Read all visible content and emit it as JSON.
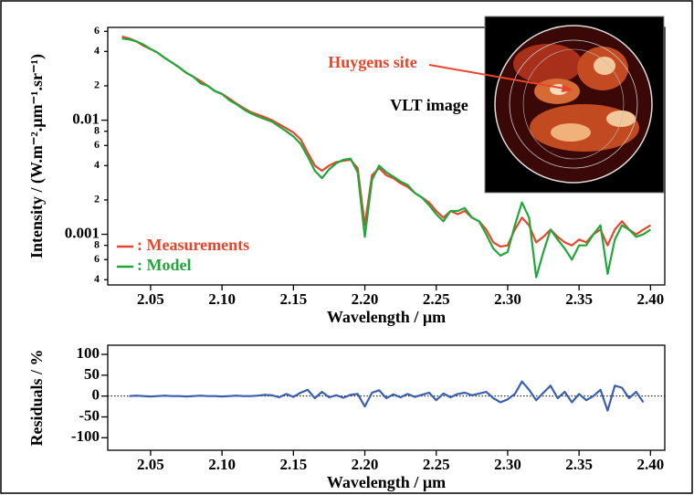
{
  "chart_data": [
    {
      "type": "line",
      "log_y": true,
      "legend": "lower left",
      "xlabel": "Wavelength / µm",
      "ylabel": "Intensity / (W.m⁻².µm⁻¹.sr⁻¹)",
      "annotations": [
        "Huygens site",
        "VLT image"
      ],
      "xlim": [
        2.02,
        2.41
      ],
      "xticks": [
        2.05,
        2.1,
        2.15,
        2.2,
        2.25,
        2.3,
        2.35,
        2.4
      ],
      "xtick_labels": [
        "2.05",
        "2.10",
        "2.15",
        "2.20",
        "2.25",
        "2.30",
        "2.35",
        "2.40"
      ],
      "ylim": [
        0.00036,
        0.065
      ],
      "yticks": [
        {
          "value": 0.06,
          "label": "6"
        },
        {
          "value": 0.04,
          "label": "4"
        },
        {
          "value": 0.02,
          "label": "2"
        },
        0.01,
        {
          "value": 0.008,
          "label": "8"
        },
        {
          "value": 0.006,
          "label": "6"
        },
        {
          "value": 0.004,
          "label": "4"
        },
        {
          "value": 0.002,
          "label": "2"
        },
        0.001,
        {
          "value": 0.0008,
          "label": "8"
        },
        {
          "value": 0.0006,
          "label": "6"
        },
        {
          "value": 0.0004,
          "label": "4"
        }
      ],
      "x": [
        2.03,
        2.035,
        2.04,
        2.045,
        2.05,
        2.055,
        2.06,
        2.065,
        2.07,
        2.075,
        2.08,
        2.085,
        2.09,
        2.095,
        2.1,
        2.105,
        2.11,
        2.115,
        2.12,
        2.125,
        2.13,
        2.135,
        2.14,
        2.145,
        2.15,
        2.155,
        2.16,
        2.165,
        2.17,
        2.175,
        2.18,
        2.185,
        2.19,
        2.195,
        2.2,
        2.205,
        2.21,
        2.215,
        2.22,
        2.225,
        2.23,
        2.235,
        2.24,
        2.245,
        2.25,
        2.255,
        2.26,
        2.265,
        2.27,
        2.275,
        2.28,
        2.285,
        2.29,
        2.295,
        2.3,
        2.305,
        2.31,
        2.315,
        2.32,
        2.325,
        2.33,
        2.335,
        2.34,
        2.345,
        2.35,
        2.355,
        2.36,
        2.365,
        2.37,
        2.375,
        2.38,
        2.385,
        2.39,
        2.395,
        2.4
      ],
      "series": [
        {
          "name": ": Measurements",
          "color": "#e8452c",
          "values": [
            0.054,
            0.052,
            0.049,
            0.045,
            0.042,
            0.039,
            0.035,
            0.032,
            0.029,
            0.026,
            0.024,
            0.022,
            0.02,
            0.018,
            0.017,
            0.0155,
            0.014,
            0.0128,
            0.0118,
            0.0112,
            0.0106,
            0.01,
            0.0092,
            0.0085,
            0.0078,
            0.0068,
            0.0052,
            0.004,
            0.0036,
            0.004,
            0.0043,
            0.0044,
            0.0045,
            0.0038,
            0.0012,
            0.0033,
            0.0038,
            0.0033,
            0.0031,
            0.0028,
            0.0026,
            0.0023,
            0.0021,
            0.0019,
            0.0016,
            0.0014,
            0.0016,
            0.0015,
            0.0016,
            0.0014,
            0.0013,
            0.0011,
            0.00085,
            0.00078,
            0.0008,
            0.0011,
            0.0014,
            0.0012,
            0.00085,
            0.00095,
            0.0011,
            0.00095,
            0.00085,
            0.0008,
            0.0009,
            0.00085,
            0.001,
            0.0011,
            0.0008,
            0.0011,
            0.0013,
            0.0011,
            0.001,
            0.0011,
            0.0012
          ]
        },
        {
          "name": ": Model",
          "color": "#1fa73a",
          "values": [
            0.052,
            0.051,
            0.049,
            0.046,
            0.042,
            0.039,
            0.035,
            0.032,
            0.029,
            0.026,
            0.024,
            0.021,
            0.02,
            0.018,
            0.017,
            0.015,
            0.0138,
            0.0125,
            0.0115,
            0.0108,
            0.0102,
            0.0097,
            0.0088,
            0.008,
            0.0072,
            0.0062,
            0.0048,
            0.0036,
            0.0031,
            0.0037,
            0.0042,
            0.0045,
            0.0046,
            0.0035,
            0.00095,
            0.003,
            0.004,
            0.0035,
            0.0032,
            0.0029,
            0.0027,
            0.0023,
            0.0021,
            0.0018,
            0.0015,
            0.0013,
            0.0016,
            0.0016,
            0.0017,
            0.0014,
            0.0013,
            0.001,
            0.00075,
            0.00065,
            0.0007,
            0.0012,
            0.0019,
            0.0014,
            0.00042,
            0.0007,
            0.0011,
            0.0009,
            0.00075,
            0.0006,
            0.0008,
            0.0008,
            0.001,
            0.0012,
            0.00045,
            0.0009,
            0.0012,
            0.0011,
            0.00095,
            0.001,
            0.0011
          ]
        }
      ]
    },
    {
      "type": "line",
      "zero_line": true,
      "xlabel": "Wavelength / µm",
      "ylabel": "Residuals / %",
      "xlim": [
        2.02,
        2.41
      ],
      "xticks": [
        2.05,
        2.1,
        2.15,
        2.2,
        2.25,
        2.3,
        2.35,
        2.4
      ],
      "xtick_labels": [
        "2.05",
        "2.10",
        "2.15",
        "2.20",
        "2.25",
        "2.30",
        "2.35",
        "2.40"
      ],
      "ylim": [
        -130,
        122
      ],
      "yticks": [
        100,
        50,
        0,
        -50,
        -100
      ],
      "x": [
        2.035,
        2.04,
        2.045,
        2.05,
        2.055,
        2.06,
        2.065,
        2.07,
        2.075,
        2.08,
        2.085,
        2.09,
        2.095,
        2.1,
        2.105,
        2.11,
        2.115,
        2.12,
        2.125,
        2.13,
        2.135,
        2.14,
        2.145,
        2.15,
        2.155,
        2.16,
        2.165,
        2.17,
        2.175,
        2.18,
        2.185,
        2.19,
        2.195,
        2.2,
        2.205,
        2.21,
        2.215,
        2.22,
        2.225,
        2.23,
        2.235,
        2.24,
        2.245,
        2.25,
        2.255,
        2.26,
        2.265,
        2.27,
        2.275,
        2.28,
        2.285,
        2.29,
        2.295,
        2.3,
        2.305,
        2.31,
        2.315,
        2.32,
        2.325,
        2.33,
        2.335,
        2.34,
        2.345,
        2.35,
        2.355,
        2.36,
        2.365,
        2.37,
        2.375,
        2.38,
        2.385,
        2.39,
        2.395
      ],
      "series": [
        {
          "color": "#3a5fb0",
          "values": [
            0,
            1,
            0,
            -1,
            0,
            1,
            0,
            0,
            -1,
            0,
            1,
            0,
            0,
            -1,
            0,
            1,
            0,
            0,
            1,
            3,
            2,
            -3,
            5,
            -2,
            8,
            15,
            -5,
            10,
            -3,
            2,
            -4,
            3,
            5,
            -25,
            8,
            14,
            -5,
            4,
            -3,
            5,
            -2,
            3,
            8,
            -10,
            6,
            -3,
            5,
            8,
            2,
            6,
            10,
            -5,
            -15,
            -8,
            5,
            35,
            15,
            -10,
            8,
            25,
            -5,
            10,
            -15,
            5,
            -10,
            0,
            15,
            -35,
            25,
            20,
            -5,
            10,
            -15
          ]
        }
      ]
    }
  ]
}
